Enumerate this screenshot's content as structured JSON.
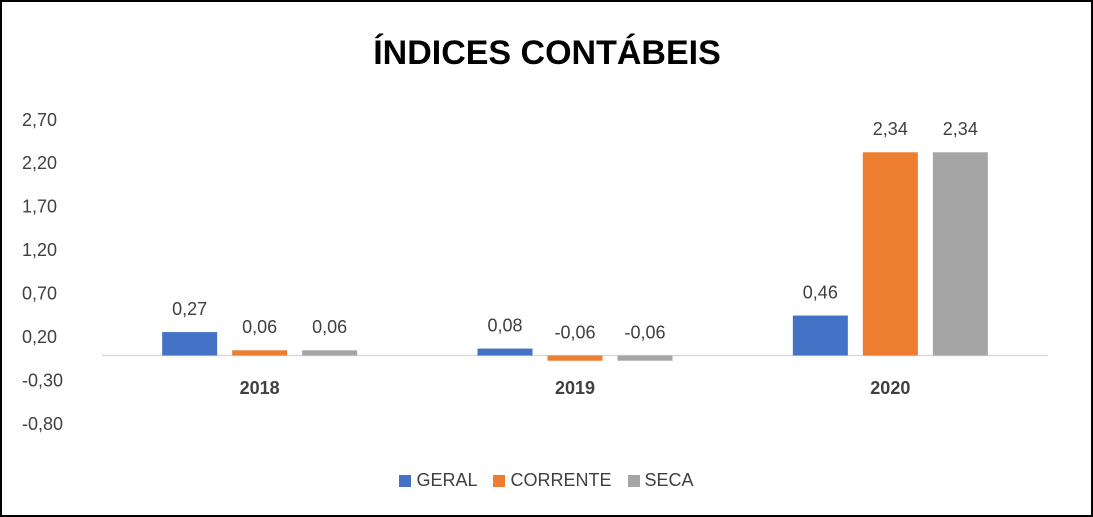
{
  "chart_data": {
    "type": "bar",
    "title": "ÍNDICES CONTÁBEIS",
    "categories": [
      "2018",
      "2019",
      "2020"
    ],
    "series": [
      {
        "name": "GERAL",
        "color": "#4472c4",
        "values": [
          0.27,
          0.08,
          0.46
        ],
        "value_labels": [
          "0,27",
          "0,08",
          "0,46"
        ]
      },
      {
        "name": "CORRENTE",
        "color": "#ed7d31",
        "values": [
          0.06,
          -0.06,
          2.34
        ],
        "value_labels": [
          "0,06",
          "-0,06",
          "2,34"
        ]
      },
      {
        "name": "SECA",
        "color": "#a5a5a5",
        "values": [
          0.06,
          -0.06,
          2.34
        ],
        "value_labels": [
          "0,06",
          "-0,06",
          "2,34"
        ]
      }
    ],
    "ylim": [
      -0.8,
      2.7
    ],
    "yticks": [
      {
        "value": -0.8,
        "label": "-0,80"
      },
      {
        "value": -0.3,
        "label": "-0,30"
      },
      {
        "value": 0.2,
        "label": "0,20"
      },
      {
        "value": 0.7,
        "label": "0,70"
      },
      {
        "value": 1.2,
        "label": "1,20"
      },
      {
        "value": 1.7,
        "label": "1,70"
      },
      {
        "value": 2.2,
        "label": "2,20"
      },
      {
        "value": 2.7,
        "label": "2,70"
      }
    ],
    "grid": false,
    "legend": "bottom"
  }
}
